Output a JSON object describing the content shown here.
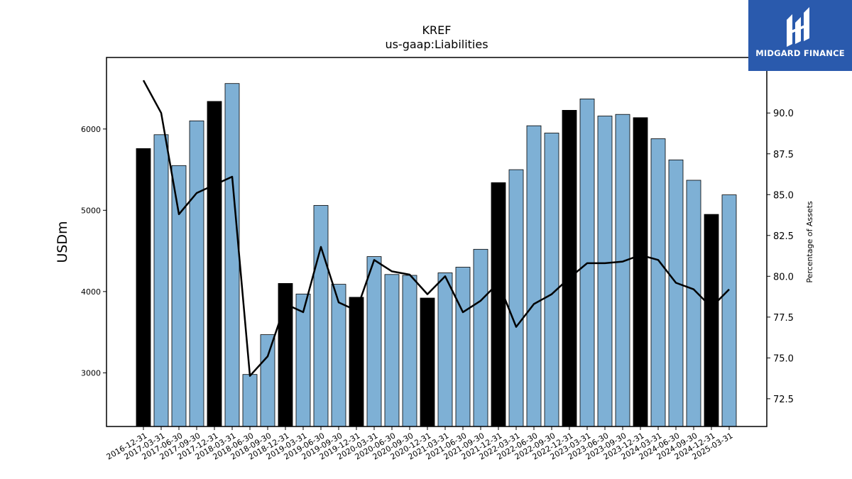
{
  "chart_data": {
    "type": "bar",
    "title": "KREF",
    "subtitle": "us-gaap:Liabilities",
    "ylabel": "USDm",
    "y2label": "Percentage of Assets",
    "ylim": [
      2340,
      6880
    ],
    "y2lim": [
      70.8,
      93.4
    ],
    "yticks": [
      3000,
      4000,
      5000,
      6000
    ],
    "y2ticks": [
      72.5,
      75.0,
      77.5,
      80.0,
      82.5,
      85.0,
      87.5,
      90.0
    ],
    "categories": [
      "2016-12-31",
      "2017-03-31",
      "2017-06-30",
      "2017-09-30",
      "2017-12-31",
      "2018-03-31",
      "2018-06-30",
      "2018-09-30",
      "2018-12-31",
      "2019-03-31",
      "2019-06-30",
      "2019-09-30",
      "2019-12-31",
      "2020-03-31",
      "2020-06-30",
      "2020-09-30",
      "2020-12-31",
      "2021-03-31",
      "2021-06-30",
      "2021-09-30",
      "2021-12-31",
      "2022-03-31",
      "2022-06-30",
      "2022-09-30",
      "2022-12-31",
      "2023-03-31",
      "2023-06-30",
      "2023-09-30",
      "2023-12-31",
      "2024-03-31",
      "2024-06-30",
      "2024-09-30",
      "2024-12-31",
      "2025-03-31"
    ],
    "series": [
      {
        "kind": "bar",
        "values": [
          5760,
          5930,
          5550,
          6100,
          6340,
          6560,
          2980,
          3470,
          4100,
          3970,
          5060,
          4090,
          3930,
          4430,
          4210,
          4200,
          3920,
          4230,
          4300,
          4520,
          5340,
          5500,
          6040,
          5950,
          6230,
          6370,
          6160,
          6180,
          6140,
          5880,
          5620,
          5370,
          4950,
          5190
        ]
      },
      {
        "kind": "line",
        "axis": "right",
        "values": [
          92.0,
          90.0,
          83.8,
          85.1,
          85.6,
          86.1,
          73.9,
          75.1,
          78.3,
          77.8,
          81.8,
          78.4,
          77.9,
          81.0,
          80.3,
          80.1,
          78.9,
          80.0,
          77.8,
          78.5,
          79.6,
          76.9,
          78.3,
          78.9,
          79.9,
          80.8,
          80.8,
          80.9,
          81.3,
          81.0,
          79.6,
          79.2,
          78.1,
          79.2
        ]
      }
    ],
    "colors": {
      "bar": "#7eb0d5",
      "bar_year_end": "#000000",
      "line": "#000000"
    }
  },
  "logo": {
    "text": "MIDGARD FINANCE"
  }
}
